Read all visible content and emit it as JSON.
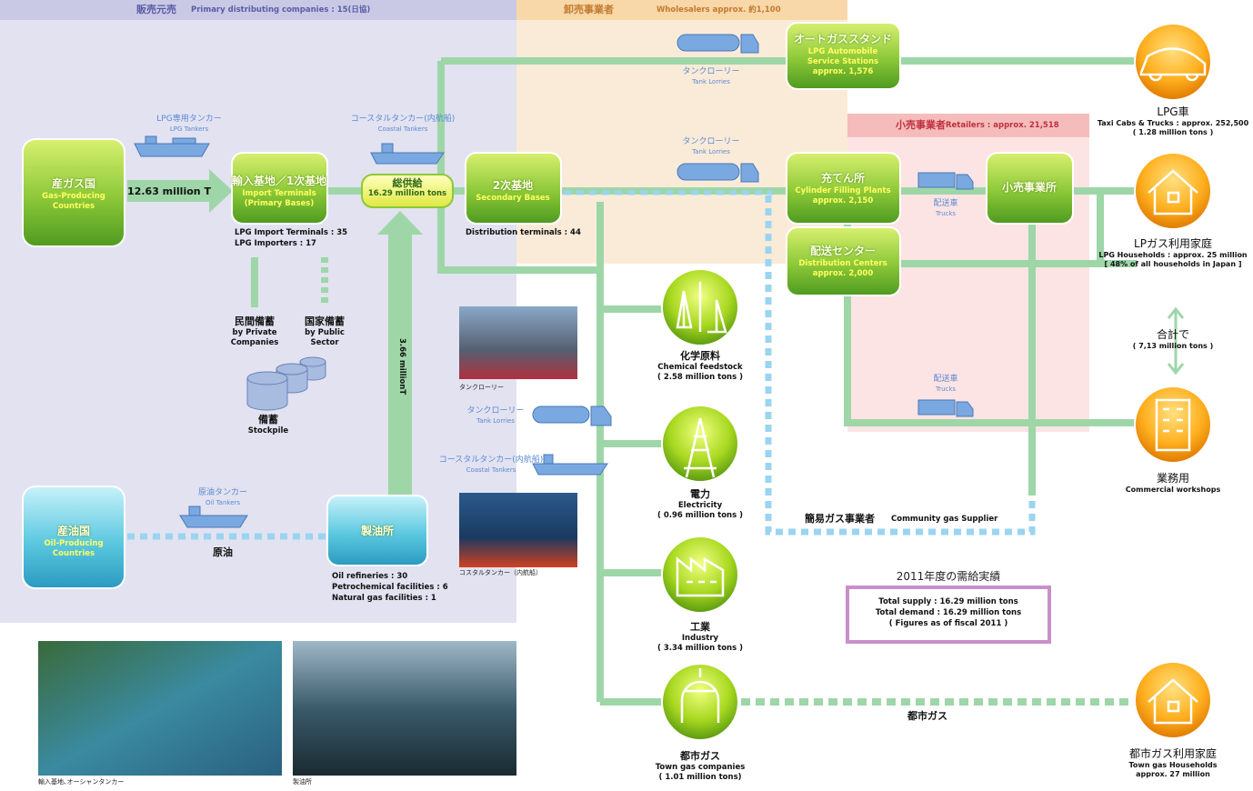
{
  "bands": {
    "primary": [
      "販売元売",
      "Primary distributing companies : 15(日協)"
    ],
    "wholesale": [
      "卸売事業者",
      "Wholesalers approx. 約1,100"
    ],
    "retail": [
      "小売事業者",
      "Retailers : approx. 21,518"
    ]
  },
  "nodes": {
    "gas_country": [
      "産ガス国",
      "Gas-Producing",
      "Countries"
    ],
    "import": [
      "輸入基地／1次基地",
      "Import Terminals",
      "(Primary Bases)"
    ],
    "total": [
      "総供給",
      "16.29 million tons"
    ],
    "secondary": [
      "2次基地",
      "Secondary Bases"
    ],
    "autogas": [
      "オートガススタンド",
      "LPG Automobile",
      "Service Stations",
      "approx. 1,576"
    ],
    "filling": [
      "充てん所",
      "Cylinder Filling Plants",
      "approx. 2,150"
    ],
    "distribution": [
      "配送センター",
      "Distribution Centers",
      "approx. 2,000"
    ],
    "retail_office": [
      "小売事業所"
    ],
    "oil_country": [
      "産油国",
      "Oil-Producing",
      "Countries"
    ],
    "refinery": [
      "製油所"
    ]
  },
  "transport": {
    "lpg_tanker": [
      "LPG専用タンカー",
      "LPG Tankers"
    ],
    "coastal_top": [
      "コースタルタンカー(内航船)",
      "Coastal Tankers"
    ],
    "lorry_top": [
      "タンクローリー",
      "Tank Lorries"
    ],
    "lorry_mid": [
      "タンクローリー",
      "Tank Lorries"
    ],
    "lorry_low": [
      "タンクローリー",
      "Tank Lorries"
    ],
    "coastal_low": [
      "コースタルタンカー(内航船)",
      "Coastal Tankers"
    ],
    "oil_tanker": [
      "原油タンカー",
      "Oil Tankers"
    ],
    "truck_1": [
      "配送車",
      "Trucks"
    ],
    "truck_2": [
      "配送車",
      "Trucks"
    ]
  },
  "flows": {
    "import_volume": "12.63 million T",
    "refinery_volume": "3.66 millionT",
    "crude": "原油",
    "town_gas": "都市ガス"
  },
  "facts": {
    "import": [
      "LPG Import Terminals : 35",
      "LPG Importers : 17"
    ],
    "secondary": [
      "Distribution terminals : 44"
    ],
    "refinery": [
      "Oil refineries : 30",
      "Petrochemical facilities : 6",
      "Natural gas facilities : 1"
    ]
  },
  "stockpile": {
    "private": [
      "民間備蓄",
      "by Private",
      "Companies"
    ],
    "public": [
      "国家備蓄",
      "by Public",
      "Sector"
    ],
    "total": [
      "備蓄",
      "Stockpile"
    ]
  },
  "demand": {
    "chemical": [
      "化学原料",
      "Chemical feedstock",
      "( 2.58 million tons )"
    ],
    "electricity": [
      "電力",
      "Electricity",
      "( 0.96 million tons )"
    ],
    "industry": [
      "工業",
      "Industry",
      "( 3.34 million tons )"
    ],
    "town_gas": [
      "都市ガス",
      "Town gas companies",
      "( 1.01 million tons)"
    ],
    "community": [
      "簡易ガス事業者",
      "Community gas Supplier"
    ]
  },
  "consumers": {
    "lpg_car": [
      "LPG車",
      "Taxi Cabs & Trucks : approx. 252,500",
      "( 1.28 million tons )"
    ],
    "households": [
      "LPガス利用家庭",
      "LPG Households : approx. 25 million",
      "[ 48% of all households in Japan ]"
    ],
    "sum": [
      "合計で",
      "( 7,13 million tons )"
    ],
    "commercial": [
      "業務用",
      "Commercial workshops"
    ],
    "town_households": [
      "都市ガス利用家庭",
      "Town gas Households",
      "approx. 27 million"
    ]
  },
  "summary": {
    "title": "2011年度の需給実績",
    "lines": [
      "Total supply : 16.29 million tons",
      "Total demand : 16.29 million tons",
      "( Figures as of fiscal 2011 )"
    ]
  },
  "captions": {
    "lorry_photo": "タンクローリー",
    "coastal_photo": "コスタルタンカー（内航船）",
    "import_photo": "輸入基地､オーシャンタンカー",
    "refinery_photo": "製油所"
  }
}
